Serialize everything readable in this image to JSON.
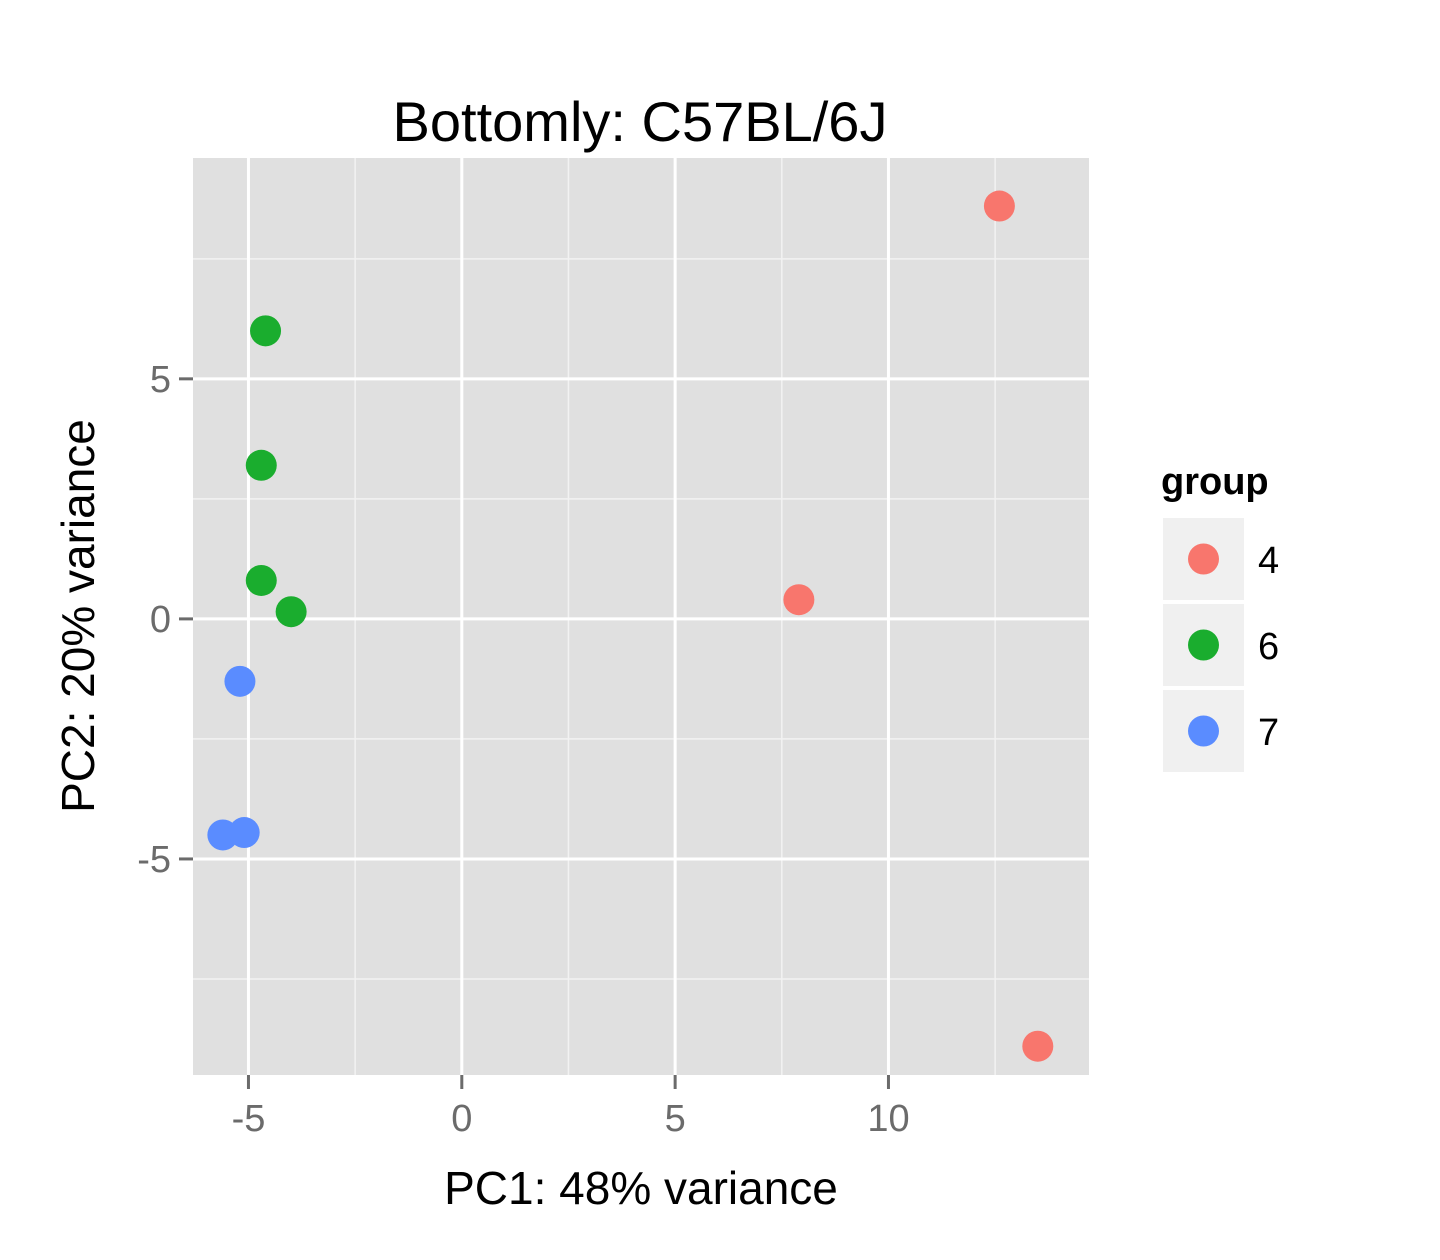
{
  "chart_data": {
    "type": "scatter",
    "title": "Bottomly: C57BL/6J",
    "xlabel": "PC1: 48% variance",
    "ylabel": "PC2: 20% variance",
    "xlim": [
      -6.3,
      14.7
    ],
    "ylim": [
      -9.5,
      9.6
    ],
    "x_ticks": [
      -5,
      0,
      5,
      10
    ],
    "x_tick_labels": [
      "-5",
      "0",
      "5",
      "10"
    ],
    "y_ticks": [
      -5,
      0,
      5
    ],
    "y_tick_labels": [
      "-5",
      "0",
      "5"
    ],
    "grid": true,
    "legend": {
      "title": "group",
      "position": "right"
    },
    "series": [
      {
        "name": "4",
        "color": "#f8766d",
        "points": [
          {
            "x": 12.6,
            "y": 8.6
          },
          {
            "x": 7.9,
            "y": 0.4
          },
          {
            "x": 13.5,
            "y": -8.9
          }
        ]
      },
      {
        "name": "6",
        "color": "#1aad2e",
        "points": [
          {
            "x": -4.6,
            "y": 6.0
          },
          {
            "x": -4.7,
            "y": 3.2
          },
          {
            "x": -4.7,
            "y": 0.8
          },
          {
            "x": -4.0,
            "y": 0.15
          }
        ]
      },
      {
        "name": "7",
        "color": "#5a8cff",
        "points": [
          {
            "x": -5.2,
            "y": -1.3
          },
          {
            "x": -5.6,
            "y": -4.5
          },
          {
            "x": -5.1,
            "y": -4.45
          }
        ]
      }
    ]
  }
}
